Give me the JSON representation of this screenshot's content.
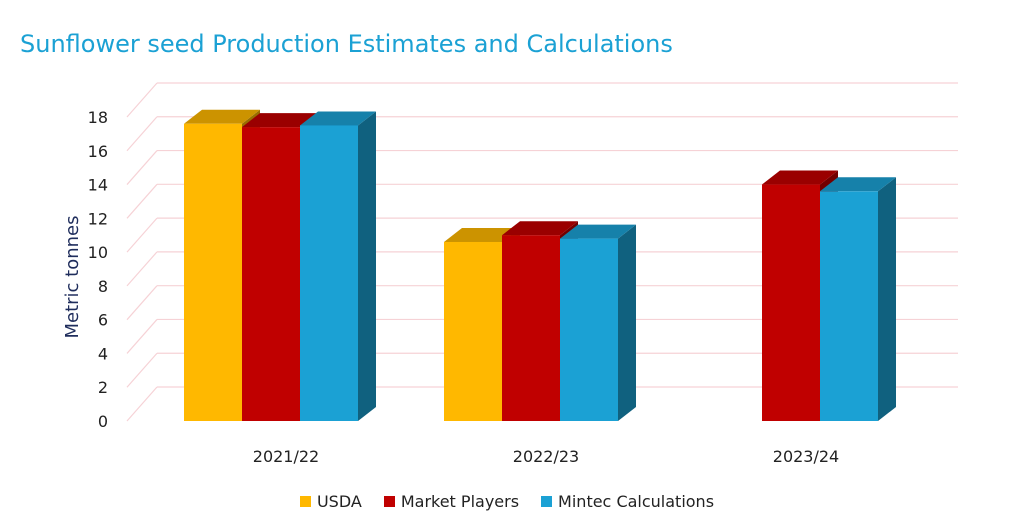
{
  "chart_data": {
    "type": "bar",
    "title": "Sunflower seed Production Estimates and Calculations",
    "ylabel": "Metric tonnes",
    "xlabel": "",
    "ylim": [
      0,
      18
    ],
    "yticks": [
      0,
      2,
      4,
      6,
      8,
      10,
      12,
      14,
      16,
      18
    ],
    "categories": [
      "2021/22",
      "2022/23",
      "2023/24"
    ],
    "series": [
      {
        "name": "USDA",
        "color": "#ffb800",
        "values": [
          17.6,
          10.6,
          null
        ]
      },
      {
        "name": "Market Players",
        "color": "#c00000",
        "values": [
          17.4,
          11.0,
          14.0
        ]
      },
      {
        "name": "Mintec Calculations",
        "color": "#1ba1d4",
        "values": [
          17.5,
          10.8,
          13.6
        ]
      }
    ],
    "grid": true,
    "legend_position": "bottom"
  }
}
